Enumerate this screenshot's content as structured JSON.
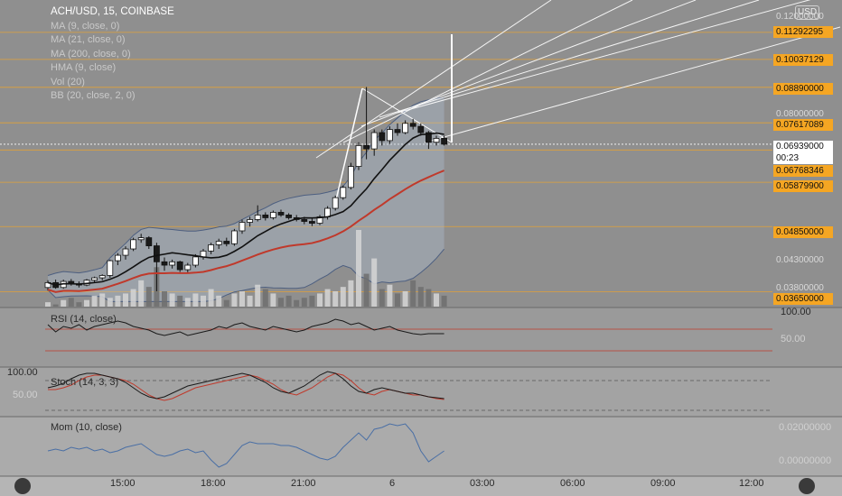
{
  "header": {
    "symbol": "ACH/USD, 15, COINBASE",
    "indicators": [
      "MA (9, close, 0)",
      "MA (21, close, 0)",
      "MA (200, close, 0)",
      "HMA (9, close)",
      "Vol (20)",
      "BB (20, close, 2, 0)"
    ],
    "currency": "USD"
  },
  "price_axis": {
    "gray_ticks": [
      "0.12000000",
      "0.08000000",
      "0.04300000",
      "0.03800000"
    ],
    "orange_labels": [
      "0.11292295",
      "0.10037129",
      "0.08890000",
      "0.07617089",
      "0.06768346",
      "0.05879900",
      "0.04850000",
      "0.03650000"
    ],
    "current_price": "0.06939000",
    "countdown": "00:23",
    "colors": {
      "orange": "#f5a623",
      "current": "#ffffff"
    }
  },
  "panes": {
    "rsi": {
      "label": "RSI (14, close)",
      "top": "100.00",
      "mid": "50.00"
    },
    "stoch": {
      "label": "Stoch (14, 3, 3)",
      "top": "100.00",
      "mid": "50.00"
    },
    "mom": {
      "label": "Mom (10, close)",
      "ticks": [
        "0.02000000",
        "0.00000000"
      ]
    }
  },
  "time_axis": [
    "15:00",
    "18:00",
    "21:00",
    "6",
    "03:00",
    "06:00",
    "09:00",
    "12:00"
  ],
  "chart_data": {
    "type": "candlestick",
    "title": "ACH/USD, 15, COINBASE",
    "interval": "15",
    "ylim": [
      0.033,
      0.125
    ],
    "ohlc": [
      [
        0.0372,
        0.0384,
        0.0367,
        0.038
      ],
      [
        0.038,
        0.0385,
        0.037,
        0.0372
      ],
      [
        0.0372,
        0.0385,
        0.037,
        0.0382
      ],
      [
        0.0382,
        0.0386,
        0.0375,
        0.0378
      ],
      [
        0.0378,
        0.0382,
        0.0372,
        0.0376
      ],
      [
        0.0376,
        0.0386,
        0.0374,
        0.0384
      ],
      [
        0.0384,
        0.039,
        0.038,
        0.0388
      ],
      [
        0.0388,
        0.0394,
        0.0384,
        0.0392
      ],
      [
        0.0392,
        0.042,
        0.0388,
        0.0418
      ],
      [
        0.0418,
        0.0432,
        0.041,
        0.0428
      ],
      [
        0.0428,
        0.0445,
        0.042,
        0.044
      ],
      [
        0.044,
        0.0462,
        0.0436,
        0.0458
      ],
      [
        0.0458,
        0.047,
        0.0452,
        0.0462
      ],
      [
        0.0462,
        0.0465,
        0.044,
        0.0446
      ],
      [
        0.0446,
        0.0452,
        0.0366,
        0.0416
      ],
      [
        0.0416,
        0.0424,
        0.04,
        0.041
      ],
      [
        0.041,
        0.042,
        0.0404,
        0.0416
      ],
      [
        0.0416,
        0.0418,
        0.0398,
        0.0402
      ],
      [
        0.0402,
        0.0414,
        0.0396,
        0.041
      ],
      [
        0.041,
        0.043,
        0.0406,
        0.0425
      ],
      [
        0.0425,
        0.044,
        0.042,
        0.0436
      ],
      [
        0.0436,
        0.0452,
        0.043,
        0.0448
      ],
      [
        0.0448,
        0.046,
        0.044,
        0.0455
      ],
      [
        0.0455,
        0.0462,
        0.0445,
        0.045
      ],
      [
        0.045,
        0.048,
        0.0446,
        0.0476
      ],
      [
        0.0476,
        0.05,
        0.047,
        0.0494
      ],
      [
        0.0494,
        0.0506,
        0.0485,
        0.05
      ],
      [
        0.05,
        0.0532,
        0.0496,
        0.051
      ],
      [
        0.051,
        0.0516,
        0.0498,
        0.0504
      ],
      [
        0.0504,
        0.052,
        0.05,
        0.0516
      ],
      [
        0.0516,
        0.0522,
        0.0506,
        0.051
      ],
      [
        0.051,
        0.0514,
        0.05,
        0.0504
      ],
      [
        0.0504,
        0.051,
        0.0496,
        0.05
      ],
      [
        0.05,
        0.0506,
        0.049,
        0.0496
      ],
      [
        0.0496,
        0.0502,
        0.0486,
        0.0492
      ],
      [
        0.0492,
        0.051,
        0.0488,
        0.0506
      ],
      [
        0.0506,
        0.053,
        0.05,
        0.0525
      ],
      [
        0.0525,
        0.0555,
        0.052,
        0.055
      ],
      [
        0.055,
        0.058,
        0.0545,
        0.0575
      ],
      [
        0.0575,
        0.064,
        0.057,
        0.063
      ],
      [
        0.063,
        0.07,
        0.062,
        0.069
      ],
      [
        0.069,
        0.089,
        0.065,
        0.068
      ],
      [
        0.068,
        0.074,
        0.066,
        0.073
      ],
      [
        0.073,
        0.074,
        0.069,
        0.0705
      ],
      [
        0.0705,
        0.075,
        0.0695,
        0.074
      ],
      [
        0.074,
        0.076,
        0.072,
        0.073
      ],
      [
        0.073,
        0.077,
        0.0725,
        0.076
      ],
      [
        0.076,
        0.0775,
        0.074,
        0.075
      ],
      [
        0.075,
        0.076,
        0.072,
        0.073
      ],
      [
        0.073,
        0.0735,
        0.068,
        0.07
      ],
      [
        0.07,
        0.072,
        0.069,
        0.0712
      ],
      [
        0.0712,
        0.072,
        0.069,
        0.0694
      ]
    ],
    "volume": [
      2,
      1,
      3,
      4,
      2,
      3,
      5,
      6,
      4,
      5,
      6,
      8,
      12,
      9,
      18,
      7,
      6,
      5,
      4,
      6,
      5,
      8,
      5,
      3,
      6,
      7,
      5,
      10,
      8,
      6,
      4,
      5,
      3,
      4,
      5,
      6,
      8,
      7,
      9,
      12,
      35,
      15,
      22,
      8,
      10,
      6,
      7,
      12,
      9,
      8,
      6,
      5
    ]
  }
}
